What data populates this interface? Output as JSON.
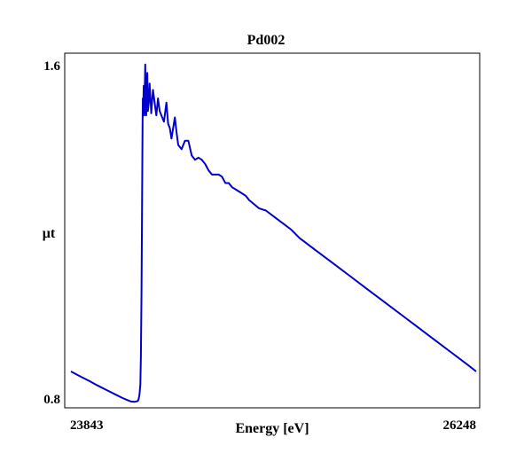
{
  "chart_data": {
    "type": "line",
    "title": "Pd002",
    "xlabel": "Energy [eV]",
    "ylabel": "μt",
    "xlim": [
      23843,
      26248
    ],
    "ylim": [
      0.8,
      1.6
    ],
    "x_tick_labels": [
      "23843",
      "26248"
    ],
    "y_tick_labels": [
      "1.6",
      "0.8"
    ],
    "grid": false,
    "legend": "none",
    "line_color": "#0000cc",
    "series": [
      {
        "x": [
          23843,
          23900,
          23950,
          24000,
          24050,
          24100,
          24150,
          24180,
          24200,
          24220,
          24240,
          24245,
          24250,
          24255,
          24258,
          24262,
          24265,
          24268,
          24270,
          24272,
          24275,
          24278,
          24281,
          24284,
          24287,
          24290,
          24293,
          24296,
          24300,
          24305,
          24310,
          24315,
          24320,
          24330,
          24340,
          24350,
          24360,
          24370,
          24380,
          24395,
          24410,
          24420,
          24430,
          24440,
          24450,
          24460,
          24470,
          24480,
          24500,
          24520,
          24540,
          24560,
          24580,
          24600,
          24620,
          24640,
          24660,
          24680,
          24700,
          24720,
          24740,
          24760,
          24780,
          24800,
          24820,
          24840,
          24860,
          24880,
          24900,
          24930,
          24960,
          25000,
          25050,
          25100,
          25150,
          25200,
          25300,
          25400,
          25500,
          25600,
          25700,
          25800,
          25900,
          26000,
          26100,
          26200,
          26248
        ],
        "y": [
          0.865,
          0.853,
          0.843,
          0.832,
          0.822,
          0.812,
          0.802,
          0.797,
          0.794,
          0.793,
          0.795,
          0.8,
          0.81,
          0.835,
          0.9,
          1.05,
          1.25,
          1.45,
          1.51,
          1.48,
          1.54,
          1.47,
          1.52,
          1.59,
          1.49,
          1.47,
          1.53,
          1.57,
          1.48,
          1.5,
          1.545,
          1.51,
          1.475,
          1.53,
          1.5,
          1.47,
          1.51,
          1.48,
          1.47,
          1.455,
          1.5,
          1.45,
          1.44,
          1.415,
          1.44,
          1.465,
          1.43,
          1.4,
          1.39,
          1.41,
          1.41,
          1.375,
          1.365,
          1.37,
          1.365,
          1.355,
          1.34,
          1.33,
          1.33,
          1.33,
          1.325,
          1.31,
          1.31,
          1.3,
          1.295,
          1.29,
          1.285,
          1.28,
          1.27,
          1.26,
          1.25,
          1.245,
          1.23,
          1.215,
          1.2,
          1.18,
          1.15,
          1.12,
          1.09,
          1.06,
          1.03,
          1.0,
          0.97,
          0.94,
          0.91,
          0.88,
          0.865
        ]
      }
    ]
  }
}
